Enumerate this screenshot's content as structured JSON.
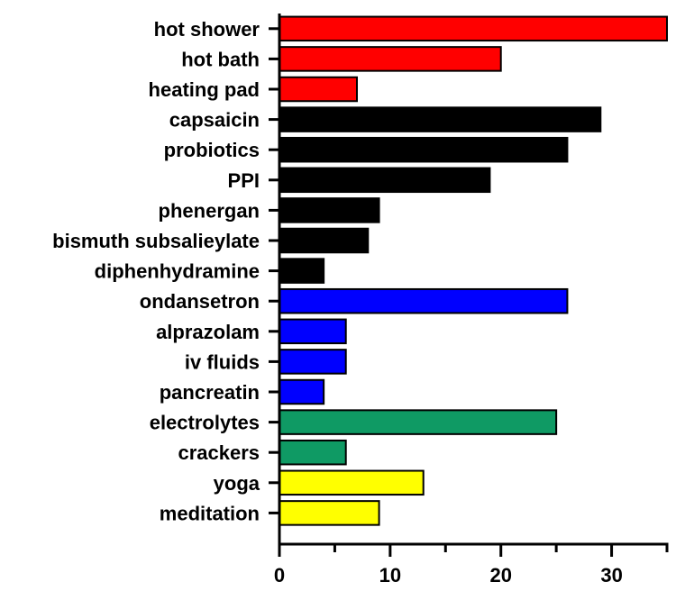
{
  "chart_data": {
    "type": "bar",
    "orientation": "horizontal",
    "title": "",
    "xlabel": "",
    "ylabel": "",
    "xlim": [
      0,
      35
    ],
    "x_ticks": [
      0,
      10,
      20,
      30
    ],
    "grid": false,
    "categories": [
      "hot shower",
      "hot bath",
      "heating pad",
      "capsaicin",
      "probiotics",
      "PPI",
      "phenergan",
      "bismuth subsalieylate",
      "diphenhydramine",
      "ondansetron",
      "alprazolam",
      "iv fluids",
      "pancreatin",
      "electrolytes",
      "crackers",
      "yoga",
      "meditation"
    ],
    "values": [
      35,
      20,
      7,
      29,
      26,
      19,
      9,
      8,
      4,
      26,
      6,
      6,
      4,
      25,
      6,
      13,
      9
    ],
    "bar_colors": [
      "#ff0000",
      "#ff0000",
      "#ff0000",
      "#000000",
      "#000000",
      "#000000",
      "#000000",
      "#000000",
      "#000000",
      "#0000ff",
      "#0000ff",
      "#0000ff",
      "#0000ff",
      "#0f9a64",
      "#0f9a64",
      "#ffff00",
      "#ffff00"
    ]
  }
}
